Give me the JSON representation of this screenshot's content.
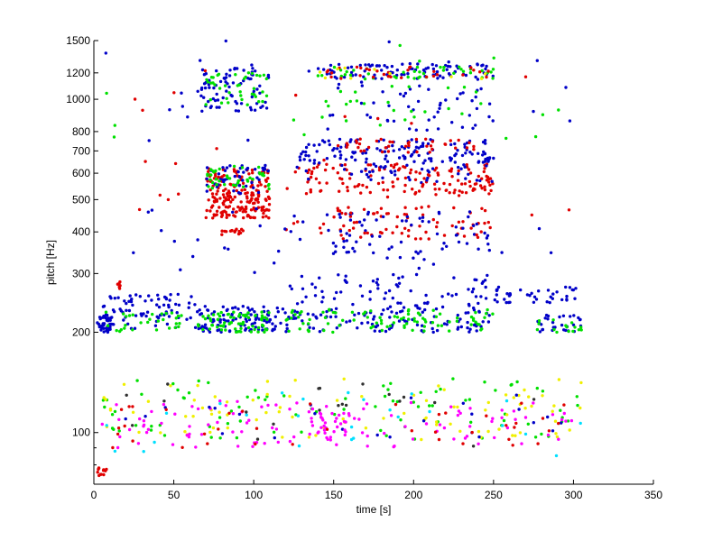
{
  "chart_data": {
    "type": "scatter",
    "title": "",
    "xlabel": "time [s]",
    "ylabel": "pitch [Hz]",
    "xlim": [
      0,
      350
    ],
    "ylim": [
      70,
      1500
    ],
    "yscale": "log",
    "xticks": [
      0,
      50,
      100,
      150,
      200,
      250,
      300,
      350
    ],
    "yticks": [
      100,
      200,
      300,
      400,
      500,
      600,
      700,
      800,
      1000,
      1200,
      1500
    ],
    "grid": false,
    "legend": "none",
    "point_colors": {
      "blue": "#0000c8",
      "red": "#e00000",
      "green": "#00e000",
      "yellow": "#f0f000",
      "magenta": "#ff00ff",
      "cyan": "#00e0ff",
      "dark": "#303030"
    },
    "clusters": [
      {
        "color": "blue",
        "t": [
          2,
          12
        ],
        "f": [
          200,
          225
        ],
        "n": 40
      },
      {
        "color": "blue",
        "t": [
          5,
          65
        ],
        "f": [
          205,
          260
        ],
        "n": 80
      },
      {
        "color": "green",
        "t": [
          5,
          65
        ],
        "f": [
          200,
          230
        ],
        "n": 30
      },
      {
        "color": "blue",
        "t": [
          65,
          110
        ],
        "f": [
          200,
          240
        ],
        "n": 90
      },
      {
        "color": "green",
        "t": [
          65,
          110
        ],
        "f": [
          200,
          230
        ],
        "n": 70
      },
      {
        "color": "blue",
        "t": [
          110,
          250
        ],
        "f": [
          200,
          240
        ],
        "n": 130
      },
      {
        "color": "green",
        "t": [
          120,
          250
        ],
        "f": [
          200,
          235
        ],
        "n": 90
      },
      {
        "color": "blue",
        "t": [
          120,
          250
        ],
        "f": [
          240,
          300
        ],
        "n": 70
      },
      {
        "color": "blue",
        "t": [
          250,
          305
        ],
        "f": [
          245,
          275
        ],
        "n": 40
      },
      {
        "color": "blue",
        "t": [
          275,
          305
        ],
        "f": [
          200,
          225
        ],
        "n": 30
      },
      {
        "color": "green",
        "t": [
          275,
          305
        ],
        "f": [
          200,
          220
        ],
        "n": 15
      },
      {
        "color": "red",
        "t": [
          13,
          17
        ],
        "f": [
          270,
          285
        ],
        "n": 6
      },
      {
        "color": "red",
        "t": [
          70,
          110
        ],
        "f": [
          440,
          520
        ],
        "n": 120
      },
      {
        "color": "red",
        "t": [
          70,
          110
        ],
        "f": [
          520,
          620
        ],
        "n": 80
      },
      {
        "color": "blue",
        "t": [
          70,
          110
        ],
        "f": [
          520,
          640
        ],
        "n": 50
      },
      {
        "color": "green",
        "t": [
          70,
          110
        ],
        "f": [
          530,
          630
        ],
        "n": 40
      },
      {
        "color": "red",
        "t": [
          80,
          95
        ],
        "f": [
          390,
          410
        ],
        "n": 15
      },
      {
        "color": "blue",
        "t": [
          65,
          110
        ],
        "f": [
          920,
          1240
        ],
        "n": 80
      },
      {
        "color": "green",
        "t": [
          70,
          110
        ],
        "f": [
          950,
          1200
        ],
        "n": 40
      },
      {
        "color": "red",
        "t": [
          125,
          250
        ],
        "f": [
          520,
          640
        ],
        "n": 140
      },
      {
        "color": "blue",
        "t": [
          125,
          250
        ],
        "f": [
          560,
          700
        ],
        "n": 80
      },
      {
        "color": "blue",
        "t": [
          130,
          250
        ],
        "f": [
          650,
          760
        ],
        "n": 100
      },
      {
        "color": "red",
        "t": [
          150,
          240
        ],
        "f": [
          690,
          760
        ],
        "n": 40
      },
      {
        "color": "red",
        "t": [
          150,
          250
        ],
        "f": [
          380,
          480
        ],
        "n": 60
      },
      {
        "color": "blue",
        "t": [
          140,
          250
        ],
        "f": [
          330,
          460
        ],
        "n": 70
      },
      {
        "color": "blue",
        "t": [
          140,
          250
        ],
        "f": [
          1150,
          1280
        ],
        "n": 90
      },
      {
        "color": "green",
        "t": [
          140,
          250
        ],
        "f": [
          1150,
          1250
        ],
        "n": 40
      },
      {
        "color": "red",
        "t": [
          140,
          250
        ],
        "f": [
          1150,
          1250
        ],
        "n": 30
      },
      {
        "color": "blue",
        "t": [
          140,
          250
        ],
        "f": [
          800,
          1150
        ],
        "n": 50
      },
      {
        "color": "green",
        "t": [
          140,
          250
        ],
        "f": [
          800,
          1100
        ],
        "n": 25
      },
      {
        "color": "yellow",
        "t": [
          140,
          250
        ],
        "f": [
          1150,
          1250
        ],
        "n": 10
      },
      {
        "color": "red",
        "t": [
          115,
          250
        ],
        "f": [
          390,
          430
        ],
        "n": 20
      },
      {
        "color": "blue",
        "t": [
          20,
          300
        ],
        "f": [
          280,
          500
        ],
        "n": 35
      },
      {
        "color": "red",
        "t": [
          10,
          305
        ],
        "f": [
          400,
          1300
        ],
        "n": 30
      },
      {
        "color": "blue",
        "t": [
          5,
          300
        ],
        "f": [
          750,
          1500
        ],
        "n": 20
      },
      {
        "color": "green",
        "t": [
          5,
          300
        ],
        "f": [
          750,
          1500
        ],
        "n": 12
      },
      {
        "color": "green",
        "t": [
          5,
          305
        ],
        "f": [
          95,
          145
        ],
        "n": 90
      },
      {
        "color": "yellow",
        "t": [
          5,
          305
        ],
        "f": [
          95,
          145
        ],
        "n": 90
      },
      {
        "color": "magenta",
        "t": [
          5,
          305
        ],
        "f": [
          90,
          125
        ],
        "n": 110
      },
      {
        "color": "cyan",
        "t": [
          5,
          305
        ],
        "f": [
          85,
          135
        ],
        "n": 25
      },
      {
        "color": "blue",
        "t": [
          5,
          305
        ],
        "f": [
          95,
          130
        ],
        "n": 25
      },
      {
        "color": "red",
        "t": [
          5,
          305
        ],
        "f": [
          90,
          125
        ],
        "n": 40
      },
      {
        "color": "dark",
        "t": [
          5,
          305
        ],
        "f": [
          90,
          140
        ],
        "n": 20
      },
      {
        "color": "magenta",
        "t": [
          140,
          160
        ],
        "f": [
          95,
          115
        ],
        "n": 30
      },
      {
        "color": "red",
        "t": [
          1,
          8
        ],
        "f": [
          74,
          82
        ],
        "n": 12
      }
    ]
  }
}
